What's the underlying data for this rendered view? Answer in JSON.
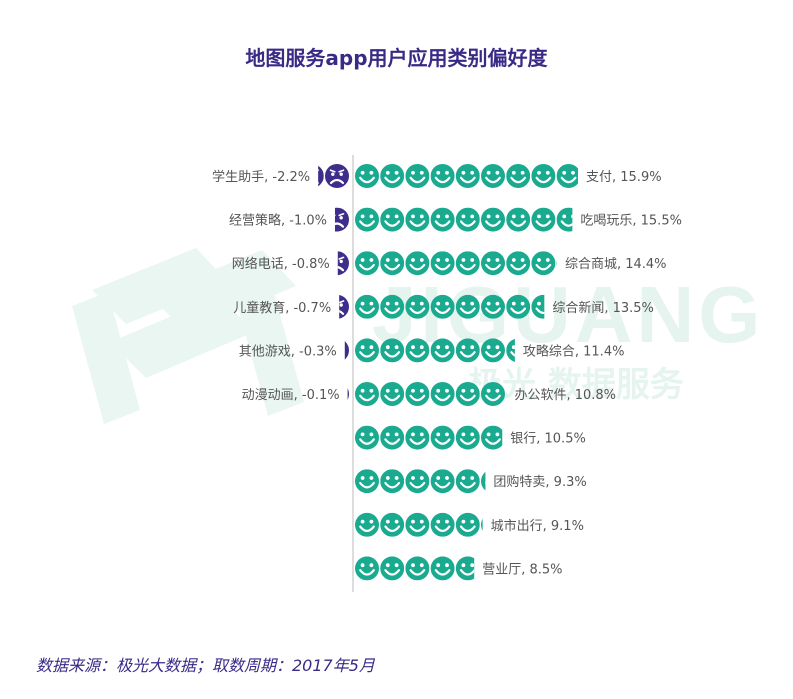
{
  "title": "地图服务app用户应用类别偏好度",
  "source": "数据来源：极光大数据；取数周期：2017年5月",
  "watermark": {
    "brand_text": "JIGUANG",
    "service_text": "极光 数据服务"
  },
  "colors": {
    "positive": "#1aaa8f",
    "negative": "#3e2d8a",
    "title": "#3a2a86",
    "label": "#555555",
    "axis": "#bbbbbb",
    "watermark": "#e6f4ef"
  },
  "icons": {
    "positive": "smiley-face-icon",
    "negative": "frowning-face-icon"
  },
  "chart_data": {
    "type": "bar",
    "orientation": "horizontal",
    "unit": "%",
    "title": "地图服务app用户应用类别偏好度",
    "positive": [
      {
        "label": "支付, 15.9%",
        "value": 15.9
      },
      {
        "label": "吃喝玩乐, 15.5%",
        "value": 15.5
      },
      {
        "label": "综合商城, 14.4%",
        "value": 14.4
      },
      {
        "label": "综合新闻, 13.5%",
        "value": 13.5
      },
      {
        "label": "攻略综合, 11.4%",
        "value": 11.4
      },
      {
        "label": "办公软件, 10.8%",
        "value": 10.8
      },
      {
        "label": "银行, 10.5%",
        "value": 10.5
      },
      {
        "label": "团购特卖, 9.3%",
        "value": 9.3
      },
      {
        "label": "城市出行, 9.1%",
        "value": 9.1
      },
      {
        "label": "营业厅, 8.5%",
        "value": 8.5
      }
    ],
    "negative": [
      {
        "label": "学生助手, -2.2%",
        "value": -2.2
      },
      {
        "label": "经营策略, -1.0%",
        "value": -1.0
      },
      {
        "label": "网络电话, -0.8%",
        "value": -0.8
      },
      {
        "label": "儿童教育, -0.7%",
        "value": -0.7
      },
      {
        "label": "其他游戏, -0.3%",
        "value": -0.3
      },
      {
        "label": "动漫动画, -0.1%",
        "value": -0.1
      }
    ]
  }
}
